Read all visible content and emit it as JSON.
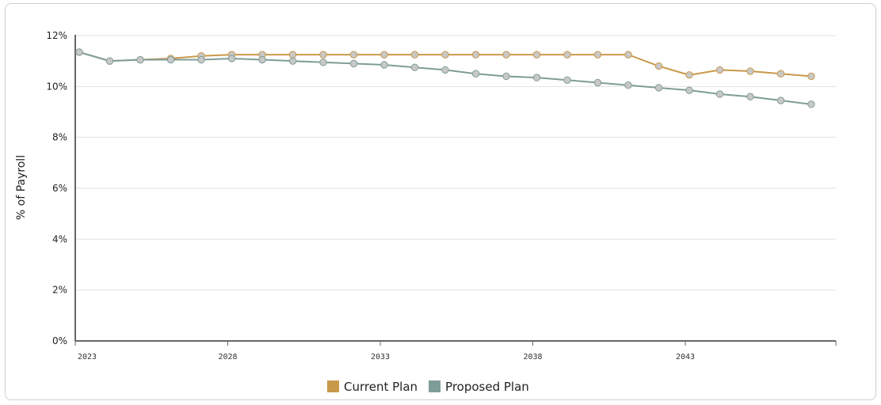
{
  "chart_data": {
    "type": "line",
    "title": "",
    "xlabel": "",
    "ylabel": "% of Payroll",
    "xlim": [
      2023,
      2048
    ],
    "ylim": [
      0,
      12
    ],
    "x_ticks": [
      2023,
      2028,
      2033,
      2038,
      2043
    ],
    "x_tick_labels": [
      "2023",
      "2028",
      "2033",
      "2038",
      "2043"
    ],
    "y_ticks": [
      0,
      2,
      4,
      6,
      8,
      10,
      12
    ],
    "y_tick_labels": [
      "0%",
      "2%",
      "4%",
      "6%",
      "8%",
      "10%",
      "12%"
    ],
    "grid": true,
    "legend_position": "bottom",
    "x": [
      2023,
      2024,
      2025,
      2026,
      2027,
      2028,
      2029,
      2030,
      2031,
      2032,
      2033,
      2034,
      2035,
      2036,
      2037,
      2038,
      2039,
      2040,
      2041,
      2042,
      2043,
      2044,
      2045,
      2046,
      2047
    ],
    "series": [
      {
        "name": "Current Plan",
        "color": "#c9994a",
        "values": [
          11.35,
          11.0,
          11.05,
          11.1,
          11.2,
          11.25,
          11.25,
          11.25,
          11.25,
          11.25,
          11.25,
          11.25,
          11.25,
          11.25,
          11.25,
          11.25,
          11.25,
          11.25,
          11.25,
          10.8,
          10.45,
          10.65,
          10.6,
          10.5,
          10.4
        ]
      },
      {
        "name": "Proposed Plan",
        "color": "#7f9d98",
        "values": [
          11.35,
          11.0,
          11.05,
          11.05,
          11.05,
          11.1,
          11.05,
          11.0,
          10.95,
          10.9,
          10.85,
          10.75,
          10.65,
          10.5,
          10.4,
          10.35,
          10.25,
          10.15,
          10.05,
          9.95,
          9.85,
          9.7,
          9.6,
          9.45,
          9.3
        ]
      }
    ]
  }
}
